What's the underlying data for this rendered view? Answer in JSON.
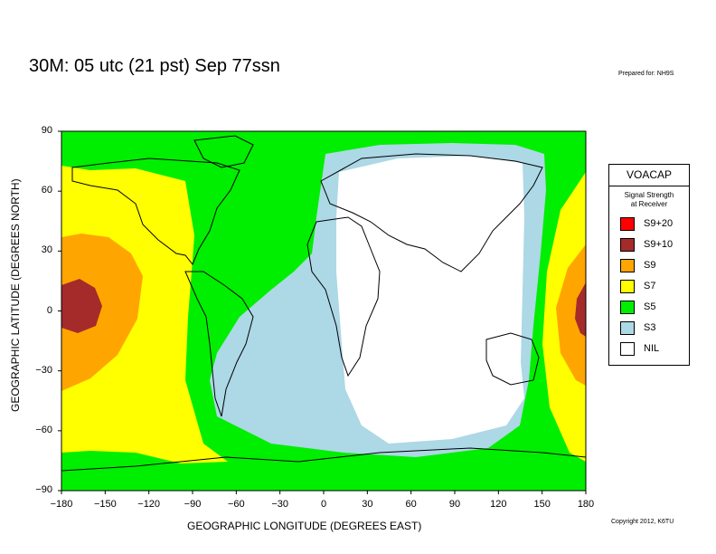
{
  "title": "30M:  05 utc (21 pst) Sep 77ssn",
  "prepared": "Prepared for: NH9S",
  "copyright": "Copyright 2012, K6TU",
  "axes": {
    "xlabel": "GEOGRAPHIC LONGITUDE (DEGREES EAST)",
    "ylabel": "GEOGRAPHIC LATITUDE (DEGREES NORTH)",
    "xticks": [
      "−180",
      "−150",
      "−120",
      "−90",
      "−60",
      "−30",
      "0",
      "30",
      "60",
      "90",
      "120",
      "150",
      "180"
    ],
    "yticks": [
      "90",
      "60",
      "30",
      "0",
      "−30",
      "−60",
      "−90"
    ],
    "xlim": [
      -180,
      180
    ],
    "ylim": [
      -90,
      90
    ]
  },
  "legend": {
    "title": "VOACAP",
    "subtitle_line1": "Signal Strength",
    "subtitle_line2": "at Receiver",
    "items": [
      {
        "label": "S9+20",
        "color": "#ff0000"
      },
      {
        "label": "S9+10",
        "color": "#a52a2a"
      },
      {
        "label": "S9",
        "color": "#ffa500"
      },
      {
        "label": "S7",
        "color": "#ffff00"
      },
      {
        "label": "S5",
        "color": "#00ee00"
      },
      {
        "label": "S3",
        "color": "#add8e6"
      },
      {
        "label": "NIL",
        "color": "#ffffff"
      }
    ]
  }
}
